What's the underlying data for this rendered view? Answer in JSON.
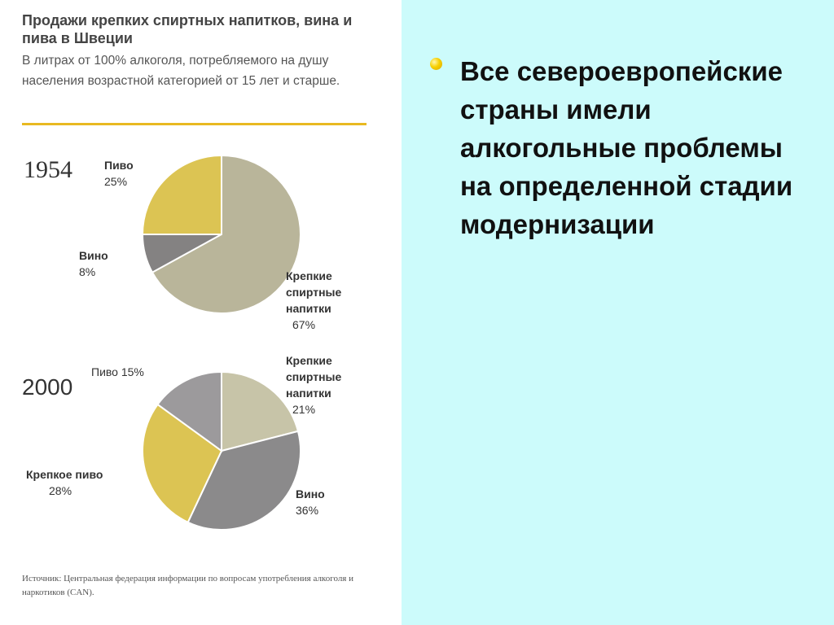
{
  "colors": {
    "slide_background": "#ccfbfb",
    "figure_background": "#ffffff",
    "rule": "#e8b921",
    "spirits_1954": "#b9b59a",
    "spirits_2000": "#c7c4a8",
    "beer": "#dcc453",
    "wine": "#848282",
    "wine_2000": "#8b8a8b",
    "light_beer_2000": "#9c9a9c",
    "bullet": "#f7d000"
  },
  "figure": {
    "title": "Продажи крепких спиртных напитков, вина и пива в Швеции",
    "subtitle": "В литрах от 100% алкоголя, потребляемого на душу населения возрастной категорией от 15 лет и старше.",
    "source": "Источник: Центральная федерация информации по вопросам употребления алкоголя и наркотиков (CAN)."
  },
  "chart_data": [
    {
      "type": "pie",
      "title": "1954",
      "slices": [
        {
          "label": "Пиво",
          "value": 25,
          "value_label": "25%",
          "color": "#dcc453"
        },
        {
          "label": "Вино",
          "value": 8,
          "value_label": "8%",
          "color": "#848282"
        },
        {
          "label": "Крепкие спиртные напитки",
          "value": 67,
          "value_label": "67%",
          "color": "#b9b59a"
        }
      ]
    },
    {
      "type": "pie",
      "title": "2000",
      "slices": [
        {
          "label": "Крепкие спиртные напитки",
          "value": 21,
          "value_label": "21%",
          "color": "#c7c4a8"
        },
        {
          "label": "Вино",
          "value": 36,
          "value_label": "36%",
          "color": "#8b8a8b"
        },
        {
          "label": "Крепкое пиво",
          "value": 28,
          "value_label": "28%",
          "color": "#dcc453"
        },
        {
          "label": "Пиво",
          "value": 15,
          "value_label": "15%",
          "color": "#9c9a9c"
        }
      ]
    }
  ],
  "labels_1954": {
    "beer_name": "Пиво",
    "beer_pct": "25%",
    "wine_name": "Вино",
    "wine_pct": "8%",
    "spirits_line1": "Крепкие",
    "spirits_line2": "спиртные",
    "spirits_line3": "напитки",
    "spirits_pct": "67%"
  },
  "labels_2000": {
    "beer": "Пиво  15%",
    "spirits_line1": "Крепкие",
    "spirits_line2": "спиртные",
    "spirits_line3": "напитки",
    "spirits_pct": "21%",
    "strong_beer_name": "Крепкое пиво",
    "strong_beer_pct": "28%",
    "wine_name": "Вино",
    "wine_pct": "36%"
  },
  "bullet": {
    "icon": "bullet-dot-icon",
    "text": "Все североевропейские страны имели алкогольные проблемы на определенной стадии модернизации"
  }
}
